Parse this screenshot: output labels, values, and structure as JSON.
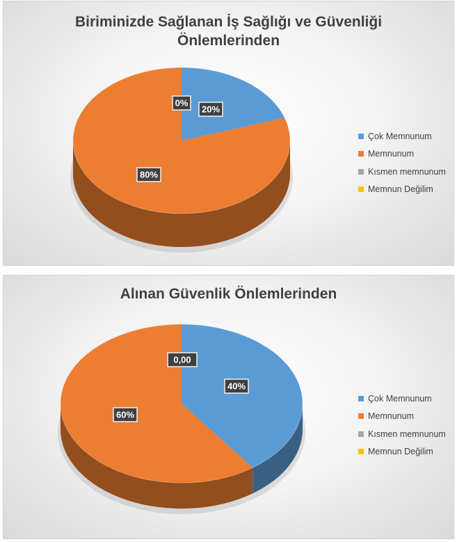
{
  "chart_data": [
    {
      "type": "pie",
      "title": "Biriminizde Sağlanan İş Sağlığı ve Güvenliği Önlemlerinden",
      "categories": [
        "Çok Memnunum",
        "Memnunum",
        "Kısmen memnunum",
        "Memnun Değilim"
      ],
      "values": [
        20,
        80,
        0,
        0
      ],
      "data_labels": [
        "20%",
        "80%",
        "0%",
        ""
      ],
      "colors": [
        "#5b9bd5",
        "#ed7d31",
        "#a5a5a5",
        "#ffc000"
      ],
      "legend": "right",
      "style": "3d"
    },
    {
      "type": "pie",
      "title": "Alınan Güvenlik Önlemlerinden",
      "categories": [
        "Çok Memnunum",
        "Memnunum",
        "Kısmen memnunum",
        "Memnun Değilim"
      ],
      "values": [
        40,
        60,
        0,
        0
      ],
      "data_labels": [
        "40%",
        "60%",
        "0,00",
        ""
      ],
      "colors": [
        "#5b9bd5",
        "#ed7d31",
        "#a5a5a5",
        "#ffc000"
      ],
      "legend": "right",
      "style": "3d"
    }
  ]
}
